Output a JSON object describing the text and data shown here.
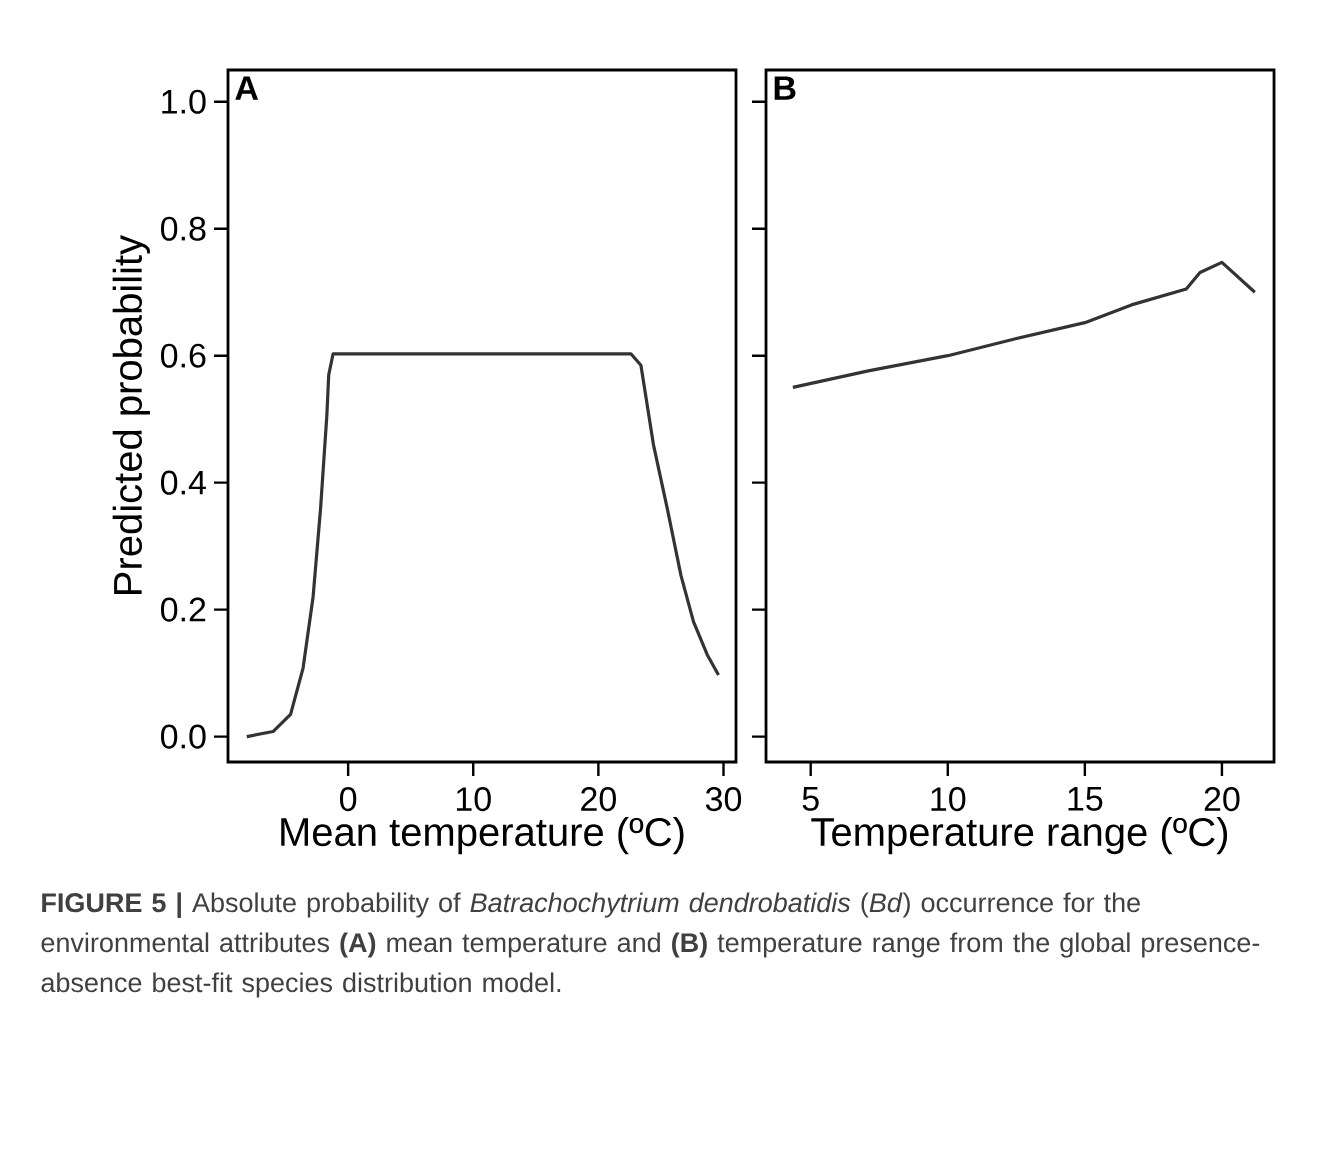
{
  "chart_data": [
    {
      "type": "line",
      "title": "A",
      "xlabel": "Mean temperature (ºC)",
      "ylabel": "Predicted probability",
      "xlim": [
        -9.6,
        31
      ],
      "xticks": [
        0,
        10,
        20,
        30
      ],
      "ylim": [
        -0.04,
        1.05
      ],
      "yticks": [
        {
          "value": 0,
          "label": "0.0"
        },
        0.2,
        0.4,
        0.6,
        0.8,
        {
          "value": 1,
          "label": "1.0"
        }
      ],
      "grid": false,
      "marker": "none",
      "line_style": "solid",
      "series": [
        {
          "color": "#333333",
          "x": [
            -8.1,
            -6.0,
            -4.6,
            -3.6,
            -2.8,
            -2.2,
            -1.7,
            -1.55,
            -1.2,
            22.6,
            23.4,
            24.4,
            25.5,
            26.6,
            27.6,
            28.7,
            29.6
          ],
          "values": [
            0.0,
            0.008,
            0.035,
            0.108,
            0.22,
            0.36,
            0.506,
            0.57,
            0.603,
            0.603,
            0.585,
            0.46,
            0.36,
            0.254,
            0.181,
            0.129,
            0.097
          ]
        }
      ],
      "annotations": [
        "**FIGURE 5 |** Absolute probability of *Batrachochytrium dendrobatidis* (*Bd*) occurrence for the environmental attributes **(A)** mean temperature and **(B)** temperature range from the global presence-absence best-fit species distribution model."
      ]
    },
    {
      "type": "line",
      "title": "B",
      "xlabel": "Temperature range (ºC)",
      "xlim": [
        3.37,
        21.9
      ],
      "xticks": [
        5,
        10,
        15,
        20
      ],
      "ylim": [
        -0.04,
        1.05
      ],
      "yticks": [
        0,
        0.2,
        0.4,
        0.6,
        0.8,
        1
      ],
      "tick_labels": "x",
      "grid": false,
      "marker": "none",
      "line_style": "solid",
      "series": [
        {
          "color": "#333333",
          "x": [
            4.35,
            7.1,
            10,
            12.4,
            15,
            16.7,
            18.7,
            19.2,
            20,
            21.2
          ],
          "values": [
            0.55,
            0.576,
            0.6,
            0.626,
            0.652,
            0.68,
            0.705,
            0.731,
            0.747,
            0.7
          ]
        }
      ]
    }
  ]
}
